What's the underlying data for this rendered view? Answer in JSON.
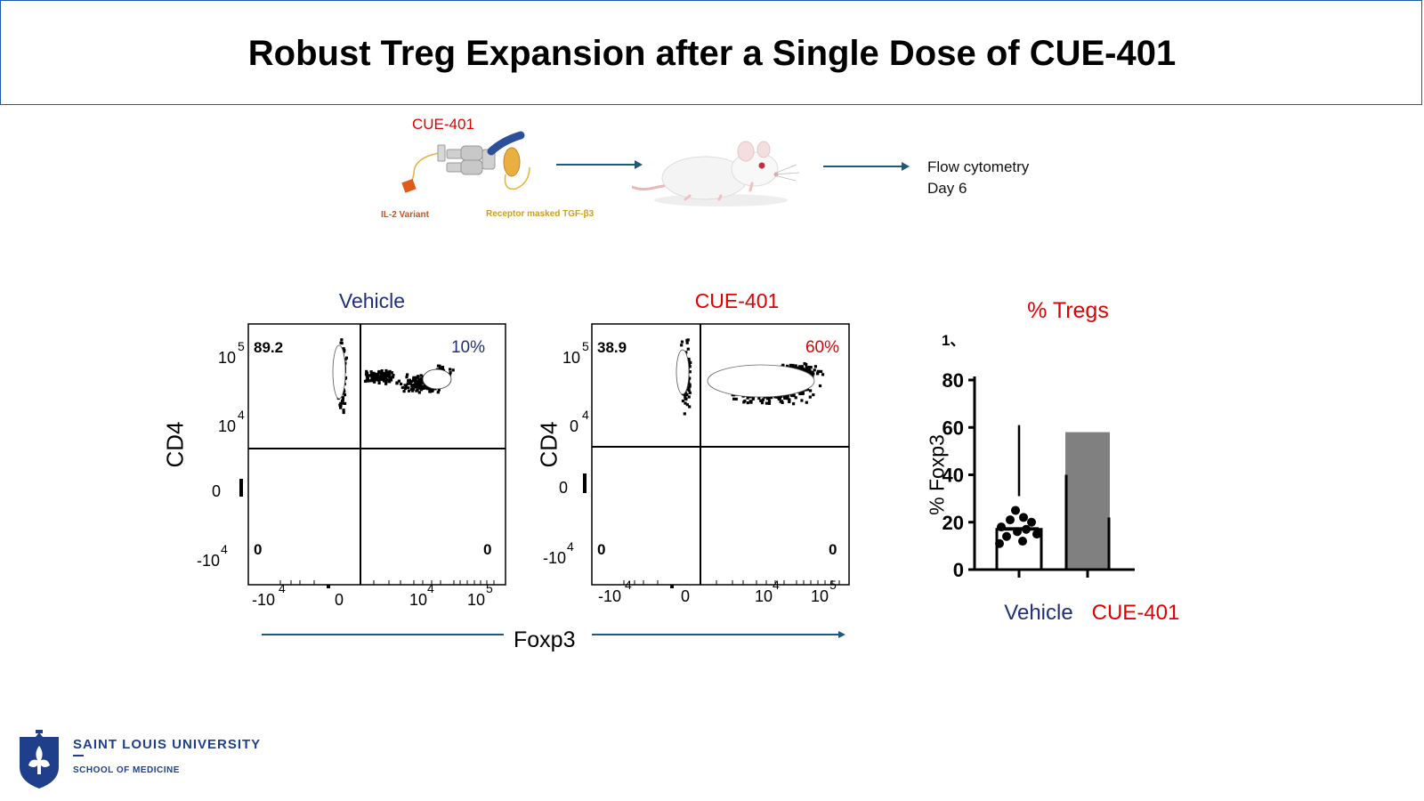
{
  "slide": {
    "title": "Robust Treg Expansion after a Single Dose of CUE-401"
  },
  "schematic": {
    "drug_label": "CUE-401",
    "il2_label": "IL-2 Variant",
    "tgf_label": "Receptor masked TGF-β3",
    "flow_line1": "Flow cytometry",
    "flow_line2": "Day 6",
    "colors": {
      "arrow": "#1f5a7a",
      "il2": "#e05a1a",
      "tgf": "#e8b040",
      "linker": "#2d4f9a"
    }
  },
  "flow_plots": {
    "x_axis_label": "Foxp3",
    "y_axis_label": "CD4",
    "x_ticks": [
      "-10",
      "0",
      "10",
      "10"
    ],
    "x_tick_exps": [
      "4",
      "",
      "4",
      "5"
    ],
    "vehicle": {
      "title": "Vehicle",
      "title_color": "#1f2f7a",
      "q_upper_left": "89.2",
      "q_upper_right": "10%",
      "q_lower_left": "0",
      "q_lower_right": "0",
      "y_ticks": [
        "10",
        "10",
        "0",
        "-10"
      ],
      "y_tick_exps": [
        "5",
        "4",
        "",
        "4"
      ]
    },
    "cue401": {
      "title": "CUE-401",
      "title_color": "#e00000",
      "q_upper_left": "38.9",
      "q_upper_right": "60%",
      "q_lower_left": "0",
      "q_lower_right": "0",
      "y_ticks": [
        "10",
        "0",
        "0",
        "-10"
      ],
      "y_tick_exps": [
        "5",
        "4",
        "",
        "4"
      ]
    }
  },
  "chart_data": {
    "type": "bar",
    "title": "% Tregs",
    "ylabel": "% Foxp3",
    "xlabel": "",
    "ylim": [
      0,
      80
    ],
    "y_ticks": [
      0,
      20,
      40,
      60,
      80
    ],
    "categories": [
      "Vehicle",
      "CUE-401"
    ],
    "values": [
      17,
      58
    ],
    "category_colors": [
      "#1f2f7a",
      "#e00000"
    ],
    "bar_fill": [
      "#ffffff",
      "#808080"
    ],
    "points": {
      "Vehicle": [
        25,
        22,
        21,
        20,
        18,
        17,
        16,
        15,
        14,
        12,
        11
      ]
    },
    "stray_mark": "1、"
  },
  "logo": {
    "university": "SAINT LOUIS UNIVERSITY",
    "school": "SCHOOL OF MEDICINE"
  }
}
